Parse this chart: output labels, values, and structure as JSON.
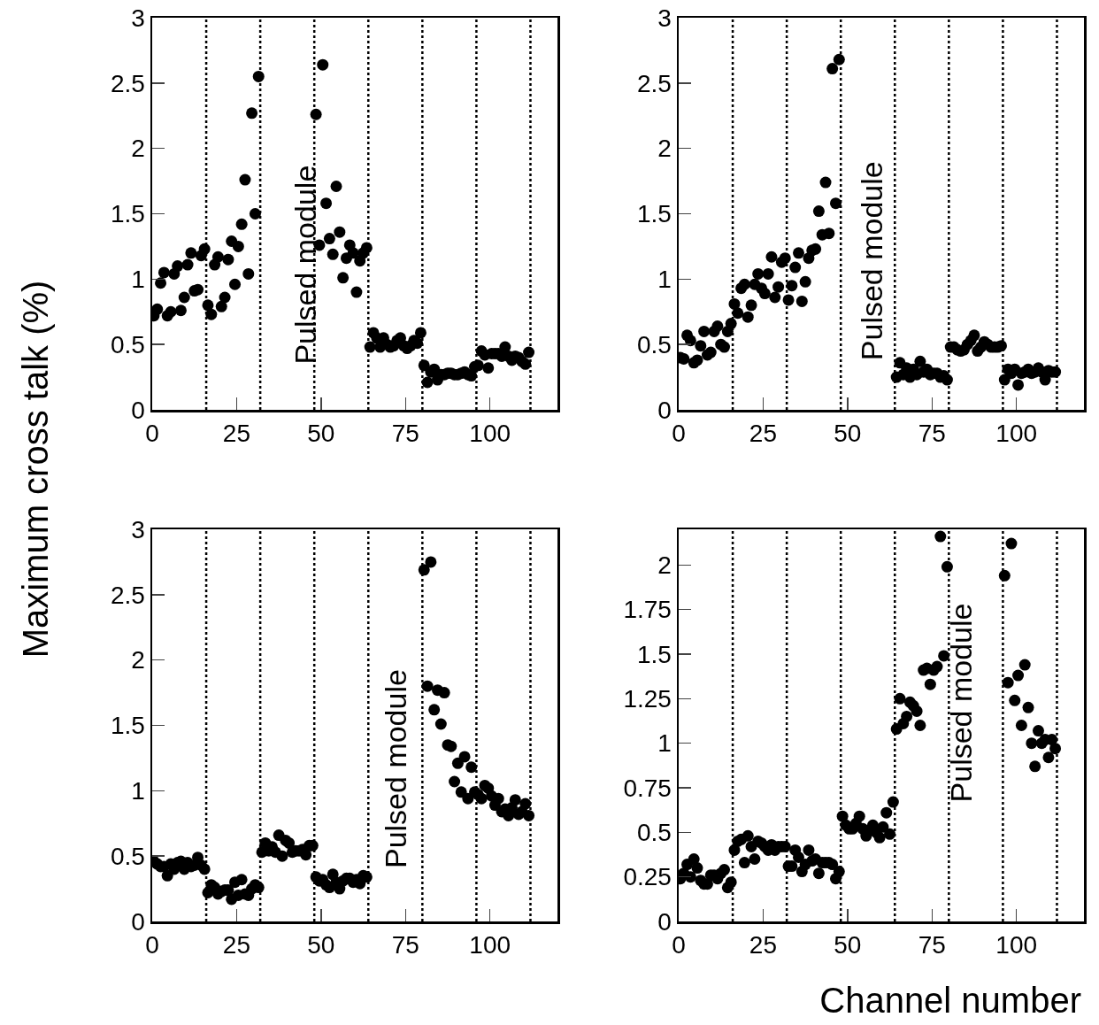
{
  "chart_data": [
    {
      "type": "scatter",
      "ylabel": "Maximum cross talk (%)",
      "marker": "circle",
      "xlim": [
        0,
        120
      ],
      "xticks": [
        0,
        25,
        50,
        75,
        100
      ],
      "ylim": [
        0,
        3
      ],
      "yticks": [
        0,
        0.5,
        1,
        1.5,
        2,
        2.5,
        3
      ],
      "x": [
        0.5,
        1.5,
        2.5,
        3.5,
        4.5,
        5.5,
        6.5,
        7.5,
        8.5,
        9.5,
        10.5,
        11.5,
        12.5,
        13.5,
        14.5,
        15.5,
        16.5,
        17.5,
        18.5,
        19.5,
        20.5,
        21.5,
        22.5,
        23.5,
        24.5,
        25.5,
        26.5,
        27.5,
        28.5,
        29.5,
        30.5,
        31.5,
        32.5,
        33.5,
        34.5,
        35.5,
        36.5,
        37.5,
        38.5,
        39.5,
        40.5,
        41.5,
        42.5,
        43.5,
        44.5,
        45.5,
        46.5,
        47.5,
        48.5,
        49.5,
        50.5,
        51.5,
        52.5,
        53.5,
        54.5,
        55.5,
        56.5,
        57.5,
        58.5,
        59.5,
        60.5,
        61.5,
        62.5,
        63.5,
        64.5,
        65.5,
        66.5,
        67.5,
        68.5,
        69.5,
        70.5,
        71.5,
        72.5,
        73.5,
        74.5,
        75.5,
        76.5,
        77.5,
        78.5,
        79.5,
        80.5,
        81.5,
        82.5,
        83.5,
        84.5,
        85.5,
        86.5,
        87.5,
        88.5,
        89.5,
        90.5,
        91.5,
        92.5,
        93.5,
        94.5,
        95.5,
        96.5,
        97.5,
        98.5,
        99.5,
        100.5,
        101.5,
        102.5,
        103.5,
        104.5,
        105.5,
        106.5,
        107.5,
        108.5,
        109.5,
        110.5,
        111.5
      ],
      "series": [
        {
          "color": "#000000",
          "values": [
            0.72,
            0.77,
            0.97,
            1.05,
            0.72,
            0.75,
            1.04,
            1.1,
            0.76,
            0.86,
            1.11,
            1.2,
            0.91,
            0.92,
            1.18,
            1.23,
            0.8,
            0.73,
            1.11,
            1.17,
            0.79,
            0.86,
            1.15,
            1.29,
            0.96,
            1.25,
            1.42,
            1.76,
            1.04,
            2.27,
            1.5,
            2.55,
            null,
            null,
            null,
            null,
            null,
            null,
            null,
            null,
            null,
            null,
            null,
            null,
            null,
            null,
            null,
            null,
            2.26,
            1.26,
            2.64,
            1.58,
            1.31,
            1.19,
            1.71,
            1.36,
            1.01,
            1.16,
            1.26,
            1.2,
            0.9,
            1.14,
            1.2,
            1.24,
            0.48,
            0.59,
            0.55,
            0.48,
            0.55,
            0.5,
            0.48,
            0.49,
            0.53,
            0.55,
            0.49,
            0.47,
            0.49,
            0.53,
            0.51,
            0.59,
            0.34,
            0.21,
            0.29,
            0.31,
            0.23,
            0.27,
            0.27,
            0.28,
            0.28,
            0.27,
            0.27,
            0.28,
            0.29,
            0.27,
            0.26,
            0.33,
            0.34,
            0.45,
            0.42,
            0.32,
            0.43,
            0.43,
            0.43,
            0.41,
            0.48,
            0.41,
            0.38,
            0.41,
            0.4,
            0.37,
            0.35,
            0.44
          ]
        }
      ],
      "ref_lines": [
        {
          "axis": "x",
          "value": 16,
          "line_style": "dotted"
        },
        {
          "axis": "x",
          "value": 32,
          "line_style": "dotted"
        },
        {
          "axis": "x",
          "value": 48,
          "line_style": "dotted"
        },
        {
          "axis": "x",
          "value": 64,
          "line_style": "dotted"
        },
        {
          "axis": "x",
          "value": 80,
          "line_style": "dotted"
        },
        {
          "axis": "x",
          "value": 96,
          "line_style": "dotted"
        },
        {
          "axis": "x",
          "value": 112,
          "line_style": "dotted"
        }
      ],
      "annotations": [
        "Pulsed module"
      ]
    },
    {
      "type": "scatter",
      "marker": "circle",
      "xlim": [
        0,
        120
      ],
      "xticks": [
        0,
        25,
        50,
        75,
        100
      ],
      "ylim": [
        0,
        3
      ],
      "yticks": [
        0,
        0.5,
        1,
        1.5,
        2,
        2.5,
        3
      ],
      "x": [
        0.5,
        1.5,
        2.5,
        3.5,
        4.5,
        5.5,
        6.5,
        7.5,
        8.5,
        9.5,
        10.5,
        11.5,
        12.5,
        13.5,
        14.5,
        15.5,
        16.5,
        17.5,
        18.5,
        19.5,
        20.5,
        21.5,
        22.5,
        23.5,
        24.5,
        25.5,
        26.5,
        27.5,
        28.5,
        29.5,
        30.5,
        31.5,
        32.5,
        33.5,
        34.5,
        35.5,
        36.5,
        37.5,
        38.5,
        39.5,
        40.5,
        41.5,
        42.5,
        43.5,
        44.5,
        45.5,
        46.5,
        47.5,
        48.5,
        49.5,
        50.5,
        51.5,
        52.5,
        53.5,
        54.5,
        55.5,
        56.5,
        57.5,
        58.5,
        59.5,
        60.5,
        61.5,
        62.5,
        63.5,
        64.5,
        65.5,
        66.5,
        67.5,
        68.5,
        69.5,
        70.5,
        71.5,
        72.5,
        73.5,
        74.5,
        75.5,
        76.5,
        77.5,
        78.5,
        79.5,
        80.5,
        81.5,
        82.5,
        83.5,
        84.5,
        85.5,
        86.5,
        87.5,
        88.5,
        89.5,
        90.5,
        91.5,
        92.5,
        93.5,
        94.5,
        95.5,
        96.5,
        97.5,
        98.5,
        99.5,
        100.5,
        101.5,
        102.5,
        103.5,
        104.5,
        105.5,
        106.5,
        107.5,
        108.5,
        109.5,
        110.5,
        111.5
      ],
      "series": [
        {
          "color": "#000000",
          "values": [
            0.4,
            0.39,
            0.57,
            0.53,
            0.36,
            0.38,
            0.49,
            0.6,
            0.42,
            0.44,
            0.6,
            0.64,
            0.5,
            0.48,
            0.6,
            0.66,
            0.81,
            0.74,
            0.93,
            0.96,
            0.71,
            0.8,
            0.96,
            1.04,
            0.93,
            0.89,
            1.04,
            1.17,
            0.86,
            0.94,
            1.13,
            1.16,
            0.84,
            0.95,
            1.09,
            1.2,
            0.83,
            0.98,
            1.16,
            1.22,
            1.23,
            1.52,
            1.34,
            1.74,
            1.35,
            2.61,
            1.58,
            2.68,
            null,
            null,
            null,
            null,
            null,
            null,
            null,
            null,
            null,
            null,
            null,
            null,
            null,
            null,
            null,
            null,
            0.25,
            0.36,
            0.27,
            0.32,
            0.25,
            0.31,
            0.27,
            0.37,
            0.29,
            0.31,
            0.27,
            0.28,
            0.28,
            0.25,
            0.26,
            0.23,
            0.48,
            0.48,
            0.46,
            0.45,
            0.46,
            0.5,
            0.53,
            0.57,
            0.45,
            0.48,
            0.52,
            0.5,
            0.48,
            0.48,
            0.48,
            0.49,
            0.23,
            0.31,
            0.28,
            0.31,
            0.19,
            0.28,
            0.29,
            0.31,
            0.28,
            0.29,
            0.32,
            0.29,
            0.23,
            0.3,
            0.29,
            0.29
          ]
        }
      ],
      "ref_lines": [
        {
          "axis": "x",
          "value": 16,
          "line_style": "dotted"
        },
        {
          "axis": "x",
          "value": 32,
          "line_style": "dotted"
        },
        {
          "axis": "x",
          "value": 48,
          "line_style": "dotted"
        },
        {
          "axis": "x",
          "value": 64,
          "line_style": "dotted"
        },
        {
          "axis": "x",
          "value": 80,
          "line_style": "dotted"
        },
        {
          "axis": "x",
          "value": 96,
          "line_style": "dotted"
        },
        {
          "axis": "x",
          "value": 112,
          "line_style": "dotted"
        }
      ],
      "annotations": [
        "Pulsed module"
      ]
    },
    {
      "type": "scatter",
      "marker": "circle",
      "xlim": [
        0,
        120
      ],
      "xticks": [
        0,
        25,
        50,
        75,
        100
      ],
      "ylim": [
        0,
        3
      ],
      "yticks": [
        0,
        0.5,
        1,
        1.5,
        2,
        2.5,
        3
      ],
      "x": [
        0.5,
        1.5,
        2.5,
        3.5,
        4.5,
        5.5,
        6.5,
        7.5,
        8.5,
        9.5,
        10.5,
        11.5,
        12.5,
        13.5,
        14.5,
        15.5,
        16.5,
        17.5,
        18.5,
        19.5,
        20.5,
        21.5,
        22.5,
        23.5,
        24.5,
        25.5,
        26.5,
        27.5,
        28.5,
        29.5,
        30.5,
        31.5,
        32.5,
        33.5,
        34.5,
        35.5,
        36.5,
        37.5,
        38.5,
        39.5,
        40.5,
        41.5,
        42.5,
        43.5,
        44.5,
        45.5,
        46.5,
        47.5,
        48.5,
        49.5,
        50.5,
        51.5,
        52.5,
        53.5,
        54.5,
        55.5,
        56.5,
        57.5,
        58.5,
        59.5,
        60.5,
        61.5,
        62.5,
        63.5,
        64.5,
        65.5,
        66.5,
        67.5,
        68.5,
        69.5,
        70.5,
        71.5,
        72.5,
        73.5,
        74.5,
        75.5,
        76.5,
        77.5,
        78.5,
        79.5,
        80.5,
        81.5,
        82.5,
        83.5,
        84.5,
        85.5,
        86.5,
        87.5,
        88.5,
        89.5,
        90.5,
        91.5,
        92.5,
        93.5,
        94.5,
        95.5,
        96.5,
        97.5,
        98.5,
        99.5,
        100.5,
        101.5,
        102.5,
        103.5,
        104.5,
        105.5,
        106.5,
        107.5,
        108.5,
        109.5,
        110.5,
        111.5
      ],
      "series": [
        {
          "color": "#000000",
          "values": [
            0.46,
            0.44,
            0.42,
            0.42,
            0.35,
            0.44,
            0.4,
            0.45,
            0.46,
            0.4,
            0.45,
            0.42,
            0.43,
            0.49,
            0.43,
            0.4,
            0.22,
            0.28,
            0.26,
            0.21,
            0.23,
            0.24,
            0.24,
            0.17,
            0.3,
            0.2,
            0.32,
            0.21,
            0.2,
            0.25,
            0.28,
            0.26,
            0.53,
            0.6,
            0.54,
            0.57,
            0.53,
            0.66,
            0.5,
            0.62,
            0.6,
            0.53,
            0.54,
            0.54,
            0.55,
            0.51,
            0.58,
            0.58,
            0.34,
            0.31,
            0.32,
            0.28,
            0.26,
            0.36,
            0.3,
            0.25,
            0.31,
            0.33,
            0.33,
            0.3,
            0.32,
            0.29,
            0.35,
            0.34,
            null,
            null,
            null,
            null,
            null,
            null,
            null,
            null,
            null,
            null,
            null,
            null,
            null,
            null,
            null,
            null,
            2.69,
            1.8,
            2.75,
            1.62,
            1.77,
            1.51,
            1.75,
            1.35,
            1.34,
            1.07,
            1.21,
            0.99,
            1.26,
            0.94,
            1.18,
            0.99,
            0.97,
            0.94,
            1.04,
            1.02,
            0.96,
            0.89,
            0.94,
            0.84,
            0.86,
            0.81,
            0.87,
            0.93,
            0.82,
            0.84,
            0.9,
            0.81
          ]
        }
      ],
      "ref_lines": [
        {
          "axis": "x",
          "value": 16,
          "line_style": "dotted"
        },
        {
          "axis": "x",
          "value": 32,
          "line_style": "dotted"
        },
        {
          "axis": "x",
          "value": 48,
          "line_style": "dotted"
        },
        {
          "axis": "x",
          "value": 64,
          "line_style": "dotted"
        },
        {
          "axis": "x",
          "value": 80,
          "line_style": "dotted"
        },
        {
          "axis": "x",
          "value": 96,
          "line_style": "dotted"
        },
        {
          "axis": "x",
          "value": 112,
          "line_style": "dotted"
        }
      ],
      "annotations": [
        "Pulsed module"
      ]
    },
    {
      "type": "scatter",
      "xlabel": "Channel number",
      "marker": "circle",
      "xlim": [
        0,
        120
      ],
      "xticks": [
        0,
        25,
        50,
        75,
        100
      ],
      "ylim": [
        0,
        2.2
      ],
      "yticks": [
        0,
        0.25,
        0.5,
        0.75,
        1,
        1.25,
        1.5,
        1.75,
        2
      ],
      "x": [
        0.5,
        1.5,
        2.5,
        3.5,
        4.5,
        5.5,
        6.5,
        7.5,
        8.5,
        9.5,
        10.5,
        11.5,
        12.5,
        13.5,
        14.5,
        15.5,
        16.5,
        17.5,
        18.5,
        19.5,
        20.5,
        21.5,
        22.5,
        23.5,
        24.5,
        25.5,
        26.5,
        27.5,
        28.5,
        29.5,
        30.5,
        31.5,
        32.5,
        33.5,
        34.5,
        35.5,
        36.5,
        37.5,
        38.5,
        39.5,
        40.5,
        41.5,
        42.5,
        43.5,
        44.5,
        45.5,
        46.5,
        47.5,
        48.5,
        49.5,
        50.5,
        51.5,
        52.5,
        53.5,
        54.5,
        55.5,
        56.5,
        57.5,
        58.5,
        59.5,
        60.5,
        61.5,
        62.5,
        63.5,
        64.5,
        65.5,
        66.5,
        67.5,
        68.5,
        69.5,
        70.5,
        71.5,
        72.5,
        73.5,
        74.5,
        75.5,
        76.5,
        77.5,
        78.5,
        79.5,
        80.5,
        81.5,
        82.5,
        83.5,
        84.5,
        85.5,
        86.5,
        87.5,
        88.5,
        89.5,
        90.5,
        91.5,
        92.5,
        93.5,
        94.5,
        95.5,
        96.5,
        97.5,
        98.5,
        99.5,
        100.5,
        101.5,
        102.5,
        103.5,
        104.5,
        105.5,
        106.5,
        107.5,
        108.5,
        109.5,
        110.5,
        111.5
      ],
      "series": [
        {
          "color": "#000000",
          "values": [
            0.24,
            0.27,
            0.32,
            0.25,
            0.35,
            0.3,
            0.23,
            0.21,
            0.21,
            0.26,
            0.26,
            0.24,
            0.27,
            0.29,
            0.19,
            0.22,
            0.4,
            0.45,
            0.46,
            0.33,
            0.48,
            0.42,
            0.35,
            0.45,
            0.44,
            0.42,
            0.4,
            0.43,
            0.4,
            0.42,
            0.42,
            0.42,
            0.31,
            0.31,
            0.4,
            0.36,
            0.28,
            0.32,
            0.4,
            0.34,
            0.35,
            0.27,
            0.33,
            0.33,
            0.33,
            0.32,
            0.24,
            0.28,
            0.59,
            0.54,
            0.52,
            0.52,
            0.55,
            0.59,
            0.52,
            0.48,
            0.51,
            0.54,
            0.5,
            0.47,
            0.53,
            0.61,
            0.49,
            0.67,
            1.08,
            1.25,
            1.11,
            1.15,
            1.23,
            1.21,
            1.18,
            1.1,
            1.41,
            1.42,
            1.33,
            1.41,
            1.43,
            2.16,
            1.49,
            1.99,
            null,
            null,
            null,
            null,
            null,
            null,
            null,
            null,
            null,
            null,
            null,
            null,
            null,
            null,
            null,
            null,
            1.94,
            1.34,
            2.12,
            1.24,
            1.38,
            1.1,
            1.44,
            1.2,
            1.0,
            0.87,
            1.07,
            1.0,
            1.02,
            0.92,
            1.02,
            0.97
          ]
        }
      ],
      "ref_lines": [
        {
          "axis": "x",
          "value": 16,
          "line_style": "dotted"
        },
        {
          "axis": "x",
          "value": 32,
          "line_style": "dotted"
        },
        {
          "axis": "x",
          "value": 48,
          "line_style": "dotted"
        },
        {
          "axis": "x",
          "value": 64,
          "line_style": "dotted"
        },
        {
          "axis": "x",
          "value": 80,
          "line_style": "dotted"
        },
        {
          "axis": "x",
          "value": 96,
          "line_style": "dotted"
        },
        {
          "axis": "x",
          "value": 112,
          "line_style": "dotted"
        }
      ],
      "annotations": [
        "Pulsed module"
      ]
    }
  ]
}
